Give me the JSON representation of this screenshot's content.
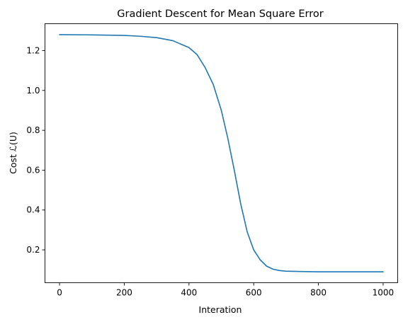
{
  "chart_data": {
    "type": "line",
    "title": "Gradient Descent for Mean Square Error",
    "xlabel": "Interation",
    "ylabel": "Cost ℒ(U)",
    "xlim": [
      -45,
      1045
    ],
    "ylim": [
      0.035,
      1.335
    ],
    "xticks": [
      0,
      200,
      400,
      600,
      800,
      1000
    ],
    "xtick_labels": [
      "0",
      "200",
      "400",
      "600",
      "800",
      "1000"
    ],
    "yticks": [
      0.2,
      0.4,
      0.6,
      0.8,
      1.0,
      1.2
    ],
    "ytick_labels": [
      "0.2",
      "0.4",
      "0.6",
      "0.8",
      "1.0",
      "1.2"
    ],
    "grid": false,
    "series": [
      {
        "color": "#1f77b4",
        "x": [
          0,
          100,
          200,
          250,
          300,
          350,
          400,
          425,
          450,
          475,
          500,
          520,
          540,
          560,
          580,
          600,
          620,
          640,
          660,
          680,
          700,
          750,
          800,
          900,
          1000
        ],
        "y": [
          1.28,
          1.279,
          1.276,
          1.272,
          1.265,
          1.25,
          1.215,
          1.18,
          1.115,
          1.03,
          0.9,
          0.76,
          0.6,
          0.43,
          0.29,
          0.2,
          0.15,
          0.118,
          0.103,
          0.096,
          0.093,
          0.091,
          0.09,
          0.09,
          0.09
        ]
      }
    ]
  }
}
